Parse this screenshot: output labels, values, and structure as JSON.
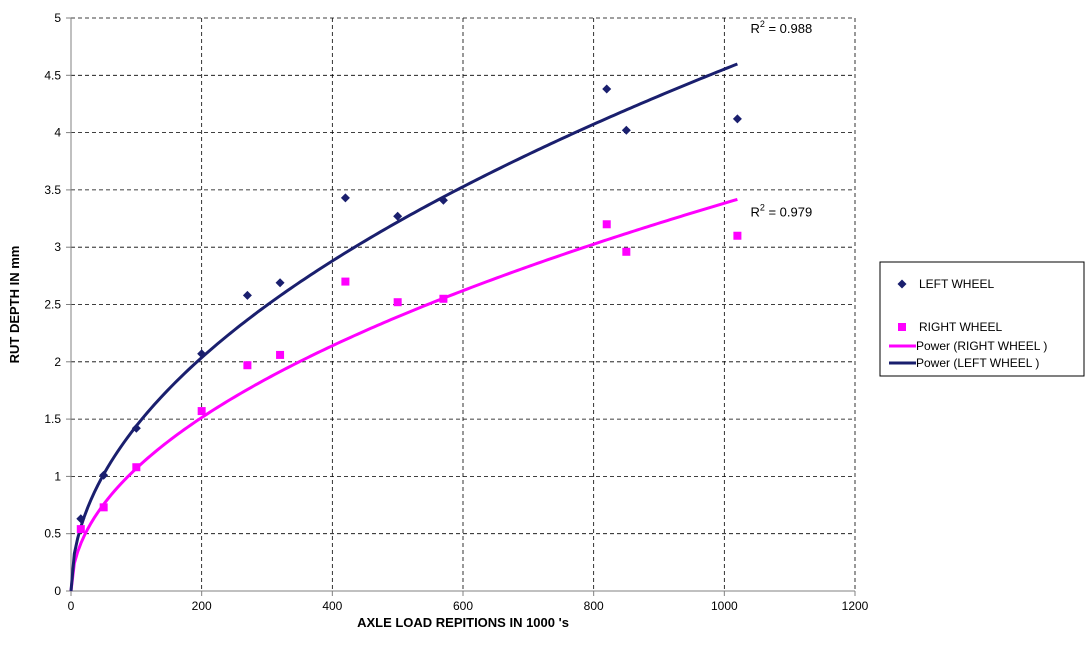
{
  "chart_data": {
    "type": "scatter",
    "title": "",
    "xlabel": "AXLE LOAD REPITIONS IN 1000 's",
    "ylabel": "RUT DEPTH IN mm",
    "xlim": [
      0,
      1200
    ],
    "ylim": [
      0,
      5
    ],
    "x_ticks": [
      0,
      200,
      400,
      600,
      800,
      1000,
      1200
    ],
    "y_ticks": [
      0,
      0.5,
      1,
      1.5,
      2,
      2.5,
      3,
      3.5,
      4,
      4.5,
      5
    ],
    "grid": true,
    "legend_position": "right",
    "series": [
      {
        "name": "LEFT WHEEL",
        "kind": "scatter",
        "marker": "diamond",
        "color": "#1a1f6e",
        "points": [
          [
            15,
            0.63
          ],
          [
            50,
            1.01
          ],
          [
            100,
            1.42
          ],
          [
            200,
            2.07
          ],
          [
            270,
            2.58
          ],
          [
            320,
            2.69
          ],
          [
            420,
            3.43
          ],
          [
            500,
            3.27
          ],
          [
            570,
            3.41
          ],
          [
            820,
            4.38
          ],
          [
            850,
            4.02
          ],
          [
            1020,
            4.12
          ]
        ]
      },
      {
        "name": "RIGHT WHEEL",
        "kind": "scatter",
        "marker": "square",
        "color": "#ff00ff",
        "points": [
          [
            15,
            0.54
          ],
          [
            50,
            0.73
          ],
          [
            100,
            1.08
          ],
          [
            200,
            1.57
          ],
          [
            270,
            1.97
          ],
          [
            320,
            2.06
          ],
          [
            420,
            2.7
          ],
          [
            500,
            2.52
          ],
          [
            570,
            2.55
          ],
          [
            820,
            3.2
          ],
          [
            850,
            2.96
          ],
          [
            1020,
            3.1
          ]
        ]
      },
      {
        "name": "Power (RIGHT WHEEL )",
        "kind": "line",
        "color": "#ff00ff",
        "fit": "power",
        "coef": 0.107,
        "exp": 0.5,
        "x_range": [
          0,
          1020
        ]
      },
      {
        "name": "Power (LEFT WHEEL )",
        "kind": "line",
        "color": "#1a1f6e",
        "fit": "power",
        "coef": 0.144,
        "exp": 0.5,
        "x_range": [
          0,
          1020
        ]
      }
    ],
    "annotations": [
      {
        "base": "R",
        "sup": "2",
        "text": " = 0.988",
        "x": 1040,
        "y": 4.87
      },
      {
        "base": "R",
        "sup": "2",
        "text": " = 0.979",
        "x": 1040,
        "y": 3.27
      }
    ],
    "legend": [
      {
        "label": "LEFT WHEEL",
        "symbol": "diamond",
        "color": "#1a1f6e"
      },
      {
        "label": "RIGHT WHEEL",
        "symbol": "square",
        "color": "#ff00ff"
      },
      {
        "label": "Power (RIGHT WHEEL )",
        "symbol": "line",
        "color": "#ff00ff"
      },
      {
        "label": "Power (LEFT WHEEL )",
        "symbol": "line",
        "color": "#1a1f6e"
      }
    ]
  }
}
